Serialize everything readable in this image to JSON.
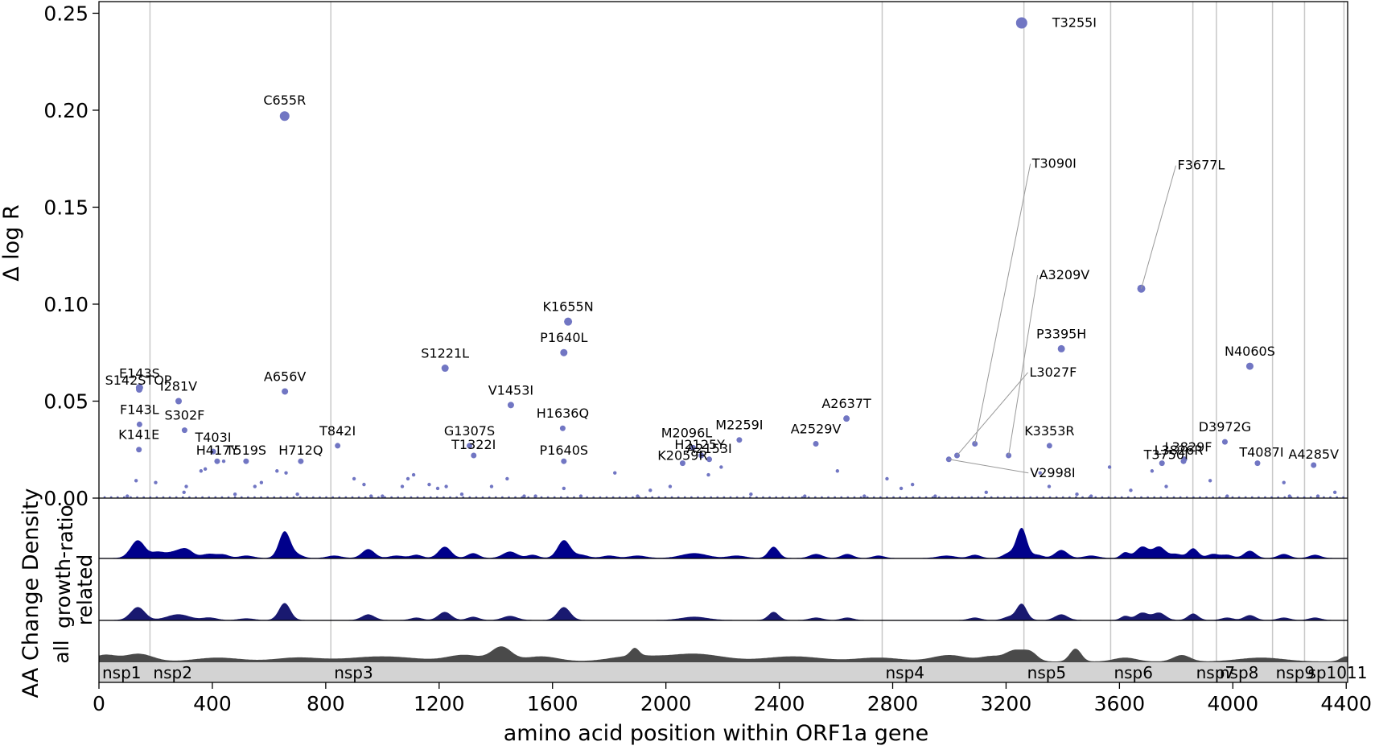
{
  "chart_data": {
    "type": "scatter",
    "xlabel": "amino acid position within ORF1a gene",
    "ylabel": "Δ log R",
    "xlim": [
      0,
      4405
    ],
    "ylim": [
      0,
      0.256
    ],
    "x_ticks": [
      0,
      400,
      800,
      1200,
      1600,
      2000,
      2400,
      2800,
      3200,
      3600,
      4000,
      4400
    ],
    "y_ticks": [
      0.0,
      0.05,
      0.1,
      0.15,
      0.2,
      0.25
    ],
    "y_tick_labels": [
      "0.00",
      "0.05",
      "0.10",
      "0.15",
      "0.20",
      "0.25"
    ],
    "grid": "vertical lines at protein boundaries",
    "density_panel_title": "AA Change Density",
    "density_rows": [
      "ratio",
      "growth-\nrelated",
      "all"
    ],
    "colors": {
      "points": "#7176c3",
      "ratio_fill": "#00008b",
      "growth_fill": "#191970",
      "all_fill": "#4a4a4a",
      "region_fill": "#d3d3d3",
      "gridline": "#c8c8c8"
    },
    "boundaries": [
      180,
      818,
      2763,
      3263,
      3569,
      3859,
      3942,
      4140,
      4253,
      4392
    ],
    "regions": [
      {
        "name": "nsp1",
        "start": 0,
        "end": 180
      },
      {
        "name": "nsp2",
        "start": 180,
        "end": 818
      },
      {
        "name": "nsp3",
        "start": 818,
        "end": 2763
      },
      {
        "name": "nsp4",
        "start": 2763,
        "end": 3263
      },
      {
        "name": "nsp5",
        "start": 3263,
        "end": 3569
      },
      {
        "name": "nsp6",
        "start": 3569,
        "end": 3859
      },
      {
        "name": "nsp7",
        "start": 3859,
        "end": 3942
      },
      {
        "name": "nsp8",
        "start": 3942,
        "end": 4140
      },
      {
        "name": "nsp9",
        "start": 4140,
        "end": 4253
      },
      {
        "name": "nsp10",
        "start": 4253,
        "end": 4392
      },
      {
        "name": "nsp11",
        "start": 4392,
        "end": 4405
      }
    ],
    "region_label_text": [
      "nsp1",
      "nsp2",
      "nsp3",
      "nsp4",
      "nsp5",
      "nsp6",
      "nsp7",
      "nsp8",
      "nsp9",
      "sp1011"
    ],
    "labeled_points": [
      {
        "label": "T3255I",
        "x": 3255,
        "y": 0.245,
        "size": 7
      },
      {
        "label": "C655R",
        "x": 655,
        "y": 0.197,
        "size": 6
      },
      {
        "label": "F3677L",
        "x": 3677,
        "y": 0.108,
        "size": 5
      },
      {
        "label": "K1655N",
        "x": 1655,
        "y": 0.091,
        "size": 5
      },
      {
        "label": "P3395H",
        "x": 3395,
        "y": 0.077,
        "size": 4.5
      },
      {
        "label": "P1640L",
        "x": 1640,
        "y": 0.075,
        "size": 4.5
      },
      {
        "label": "N4060S",
        "x": 4060,
        "y": 0.068,
        "size": 4.5
      },
      {
        "label": "S1221L",
        "x": 1221,
        "y": 0.067,
        "size": 4.5
      },
      {
        "label": "E143S",
        "x": 143,
        "y": 0.057,
        "size": 4.5
      },
      {
        "label": "S142STOP",
        "x": 142,
        "y": 0.056,
        "size": 4
      },
      {
        "label": "A656V",
        "x": 656,
        "y": 0.055,
        "size": 4
      },
      {
        "label": "I281V",
        "x": 281,
        "y": 0.05,
        "size": 4
      },
      {
        "label": "V1453I",
        "x": 1453,
        "y": 0.048,
        "size": 4
      },
      {
        "label": "A2637T",
        "x": 2637,
        "y": 0.041,
        "size": 4
      },
      {
        "label": "F143L",
        "x": 143,
        "y": 0.038,
        "size": 3.5
      },
      {
        "label": "H1636Q",
        "x": 1636,
        "y": 0.036,
        "size": 3.5
      },
      {
        "label": "S302F",
        "x": 302,
        "y": 0.035,
        "size": 3.5
      },
      {
        "label": "D3972G",
        "x": 3972,
        "y": 0.029,
        "size": 3.5
      },
      {
        "label": "M2259I",
        "x": 2259,
        "y": 0.03,
        "size": 3.5
      },
      {
        "label": "A2529V",
        "x": 2529,
        "y": 0.028,
        "size": 3.5
      },
      {
        "label": "K3353R",
        "x": 3353,
        "y": 0.027,
        "size": 3.5
      },
      {
        "label": "T842I",
        "x": 842,
        "y": 0.027,
        "size": 3.5
      },
      {
        "label": "G1307S",
        "x": 1307,
        "y": 0.027,
        "size": 3.5
      },
      {
        "label": "M2096L",
        "x": 2096,
        "y": 0.026,
        "size": 3.5
      },
      {
        "label": "K141E",
        "x": 141,
        "y": 0.025,
        "size": 3.5
      },
      {
        "label": "T403I",
        "x": 403,
        "y": 0.024,
        "size": 3.5
      },
      {
        "label": "T1322I",
        "x": 1322,
        "y": 0.022,
        "size": 3.5
      },
      {
        "label": "H2125Y",
        "x": 2125,
        "y": 0.022,
        "size": 3.5
      },
      {
        "label": "K2059R",
        "x": 2059,
        "y": 0.018,
        "size": 3.5
      },
      {
        "label": "A2153I",
        "x": 2153,
        "y": 0.02,
        "size": 3.5
      },
      {
        "label": "L3829F",
        "x": 3829,
        "y": 0.02,
        "size": 3.5
      },
      {
        "label": "L3826R",
        "x": 3826,
        "y": 0.019,
        "size": 3.5
      },
      {
        "label": "T3750I",
        "x": 3750,
        "y": 0.018,
        "size": 3.5
      },
      {
        "label": "T4087I",
        "x": 4087,
        "y": 0.018,
        "size": 3.5
      },
      {
        "label": "A4285V",
        "x": 4285,
        "y": 0.017,
        "size": 3.5
      },
      {
        "label": "P1640S",
        "x": 1640,
        "y": 0.019,
        "size": 3.5
      },
      {
        "label": "H712Q",
        "x": 712,
        "y": 0.019,
        "size": 3.5
      },
      {
        "label": "H417Y",
        "x": 417,
        "y": 0.019,
        "size": 3.5
      },
      {
        "label": "T519S",
        "x": 519,
        "y": 0.019,
        "size": 3.5
      },
      {
        "label": "T3090I",
        "x": 3090,
        "y": 0.028,
        "size": 3.5
      },
      {
        "label": "A3209V",
        "x": 3209,
        "y": 0.022,
        "size": 3.5
      },
      {
        "label": "L3027F",
        "x": 3027,
        "y": 0.022,
        "size": 3.5
      },
      {
        "label": "V2998I",
        "x": 2998,
        "y": 0.02,
        "size": 3.5
      }
    ],
    "small_points": [
      [
        131,
        0.009
      ],
      [
        200,
        0.008
      ],
      [
        300,
        0.003
      ],
      [
        308,
        0.006
      ],
      [
        360,
        0.014
      ],
      [
        375,
        0.015
      ],
      [
        440,
        0.019
      ],
      [
        550,
        0.006
      ],
      [
        573,
        0.008
      ],
      [
        628,
        0.014
      ],
      [
        660,
        0.013
      ],
      [
        900,
        0.01
      ],
      [
        935,
        0.007
      ],
      [
        1070,
        0.006
      ],
      [
        1090,
        0.01
      ],
      [
        1110,
        0.012
      ],
      [
        1165,
        0.007
      ],
      [
        1195,
        0.005
      ],
      [
        1225,
        0.006
      ],
      [
        1385,
        0.006
      ],
      [
        1440,
        0.01
      ],
      [
        1640,
        0.005
      ],
      [
        1820,
        0.013
      ],
      [
        1945,
        0.004
      ],
      [
        2015,
        0.006
      ],
      [
        2150,
        0.012
      ],
      [
        2195,
        0.016
      ],
      [
        2605,
        0.014
      ],
      [
        2780,
        0.01
      ],
      [
        2830,
        0.005
      ],
      [
        2870,
        0.007
      ],
      [
        3130,
        0.003
      ],
      [
        3320,
        0.013
      ],
      [
        3352,
        0.006
      ],
      [
        3565,
        0.016
      ],
      [
        3640,
        0.004
      ],
      [
        3715,
        0.014
      ],
      [
        3765,
        0.006
      ],
      [
        3920,
        0.009
      ],
      [
        4180,
        0.008
      ],
      [
        4360,
        0.003
      ],
      [
        2490,
        0.001
      ],
      [
        1540,
        0.001
      ],
      [
        960,
        0.001
      ],
      [
        700,
        0.002
      ],
      [
        480,
        0.002
      ],
      [
        100,
        0.001
      ],
      [
        1000,
        0.001
      ],
      [
        1280,
        0.002
      ],
      [
        1500,
        0.001
      ],
      [
        1700,
        0.001
      ],
      [
        1900,
        0.001
      ],
      [
        2300,
        0.002
      ],
      [
        2700,
        0.001
      ],
      [
        2950,
        0.001
      ],
      [
        3450,
        0.002
      ],
      [
        3500,
        0.001
      ],
      [
        3980,
        0.001
      ],
      [
        4200,
        0.001
      ],
      [
        4300,
        0.001
      ]
    ],
    "density_peaks_ratio": [
      [
        137,
        22,
        25
      ],
      [
        205,
        6,
        22
      ],
      [
        280,
        9,
        40
      ],
      [
        310,
        5,
        20
      ],
      [
        390,
        5,
        25
      ],
      [
        440,
        4,
        20
      ],
      [
        520,
        3,
        25
      ],
      [
        655,
        33,
        20
      ],
      [
        700,
        4,
        20
      ],
      [
        830,
        3,
        25
      ],
      [
        950,
        11,
        22
      ],
      [
        1050,
        3,
        25
      ],
      [
        1120,
        4,
        20
      ],
      [
        1220,
        14,
        22
      ],
      [
        1320,
        6,
        20
      ],
      [
        1450,
        8,
        25
      ],
      [
        1530,
        4,
        20
      ],
      [
        1640,
        22,
        22
      ],
      [
        1700,
        4,
        25
      ],
      [
        1800,
        3,
        25
      ],
      [
        1900,
        3,
        30
      ],
      [
        2100,
        6,
        45
      ],
      [
        2250,
        3,
        30
      ],
      [
        2380,
        14,
        18
      ],
      [
        2530,
        5,
        22
      ],
      [
        2640,
        5,
        20
      ],
      [
        2750,
        3,
        20
      ],
      [
        2990,
        3,
        30
      ],
      [
        3090,
        4,
        20
      ],
      [
        3210,
        6,
        20
      ],
      [
        3255,
        37,
        18
      ],
      [
        3310,
        4,
        20
      ],
      [
        3395,
        10,
        22
      ],
      [
        3500,
        3,
        25
      ],
      [
        3620,
        7,
        15
      ],
      [
        3680,
        14,
        22
      ],
      [
        3740,
        14,
        22
      ],
      [
        3800,
        5,
        20
      ],
      [
        3860,
        12,
        18
      ],
      [
        3930,
        5,
        20
      ],
      [
        3980,
        4,
        20
      ],
      [
        4060,
        9,
        20
      ],
      [
        4180,
        5,
        20
      ],
      [
        4290,
        4,
        20
      ]
    ],
    "density_peaks_growth": [
      [
        137,
        16,
        25
      ],
      [
        280,
        7,
        40
      ],
      [
        390,
        3,
        25
      ],
      [
        520,
        2,
        25
      ],
      [
        655,
        21,
        20
      ],
      [
        950,
        7,
        22
      ],
      [
        1120,
        3,
        20
      ],
      [
        1220,
        10,
        22
      ],
      [
        1320,
        4,
        20
      ],
      [
        1450,
        5,
        25
      ],
      [
        1640,
        16,
        22
      ],
      [
        2100,
        4,
        45
      ],
      [
        2380,
        10,
        18
      ],
      [
        2530,
        3,
        22
      ],
      [
        2640,
        3,
        20
      ],
      [
        3090,
        3,
        20
      ],
      [
        3210,
        4,
        20
      ],
      [
        3255,
        20,
        18
      ],
      [
        3395,
        7,
        22
      ],
      [
        3620,
        5,
        15
      ],
      [
        3680,
        9,
        22
      ],
      [
        3740,
        9,
        22
      ],
      [
        3860,
        8,
        18
      ],
      [
        3980,
        3,
        20
      ],
      [
        4060,
        6,
        20
      ],
      [
        4180,
        3,
        20
      ],
      [
        4290,
        3,
        20
      ]
    ],
    "density_peaks_all": [
      [
        20,
        5,
        40
      ],
      [
        140,
        6,
        50
      ],
      [
        420,
        3,
        80
      ],
      [
        700,
        3,
        80
      ],
      [
        1000,
        4,
        120
      ],
      [
        1290,
        5,
        60
      ],
      [
        1420,
        11,
        35
      ],
      [
        1560,
        4,
        60
      ],
      [
        1880,
        4,
        80
      ],
      [
        1890,
        6,
        15
      ],
      [
        2100,
        6,
        100
      ],
      [
        2450,
        4,
        100
      ],
      [
        2750,
        3,
        80
      ],
      [
        3000,
        5,
        60
      ],
      [
        3150,
        4,
        40
      ],
      [
        3230,
        8,
        30
      ],
      [
        3285,
        7,
        25
      ],
      [
        3445,
        10,
        20
      ],
      [
        3620,
        3,
        40
      ],
      [
        3820,
        5,
        30
      ],
      [
        4100,
        3,
        80
      ],
      [
        4400,
        4,
        20
      ]
    ]
  }
}
